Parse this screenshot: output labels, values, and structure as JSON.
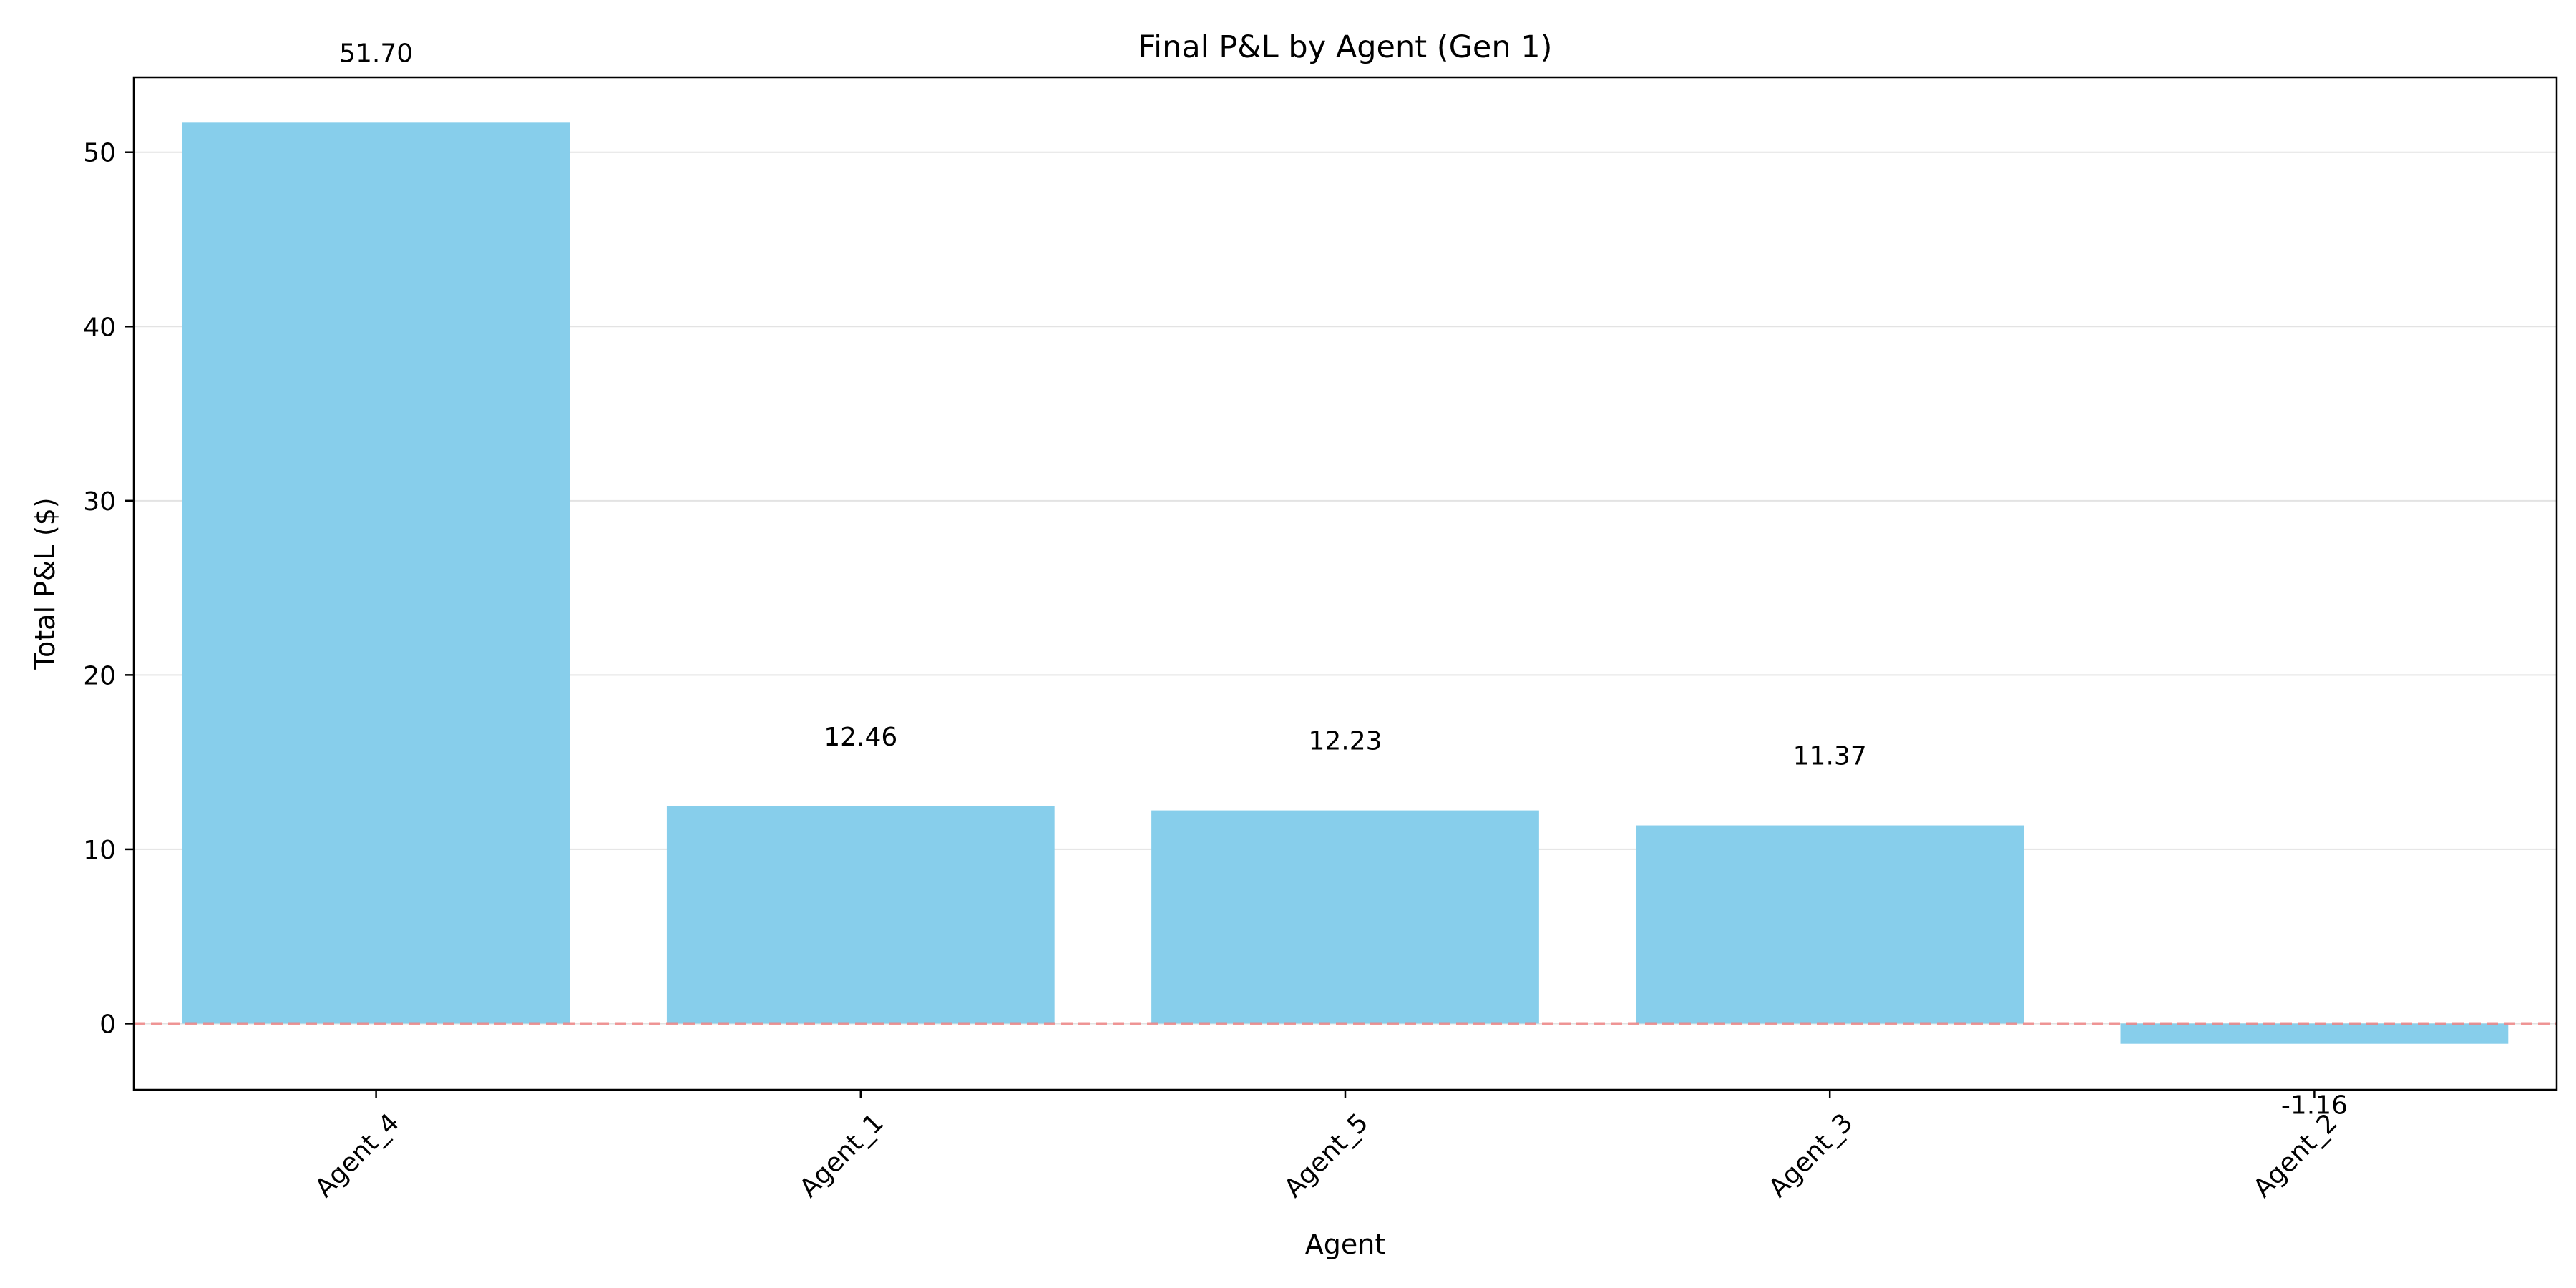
{
  "chart_data": {
    "type": "bar",
    "title": "Final P&L by Agent (Gen 1)",
    "xlabel": "Agent",
    "ylabel": "Total P&L ($)",
    "categories": [
      "Agent_4",
      "Agent_1",
      "Agent_5",
      "Agent_3",
      "Agent_2"
    ],
    "values": [
      51.7,
      12.46,
      12.23,
      11.37,
      -1.16
    ],
    "value_labels": [
      "51.70",
      "12.46",
      "12.23",
      "11.37",
      "-1.16"
    ],
    "yticks": [
      0,
      10,
      20,
      30,
      40,
      50
    ],
    "ytick_labels": [
      "0",
      "10",
      "20",
      "30",
      "40",
      "50"
    ],
    "ylim": [
      -3.8,
      54.3
    ],
    "grid": "horizontal",
    "reference_line": {
      "y": 0,
      "style": "dashed",
      "color": "#f08080"
    },
    "bar_color": "#87ceeb"
  }
}
